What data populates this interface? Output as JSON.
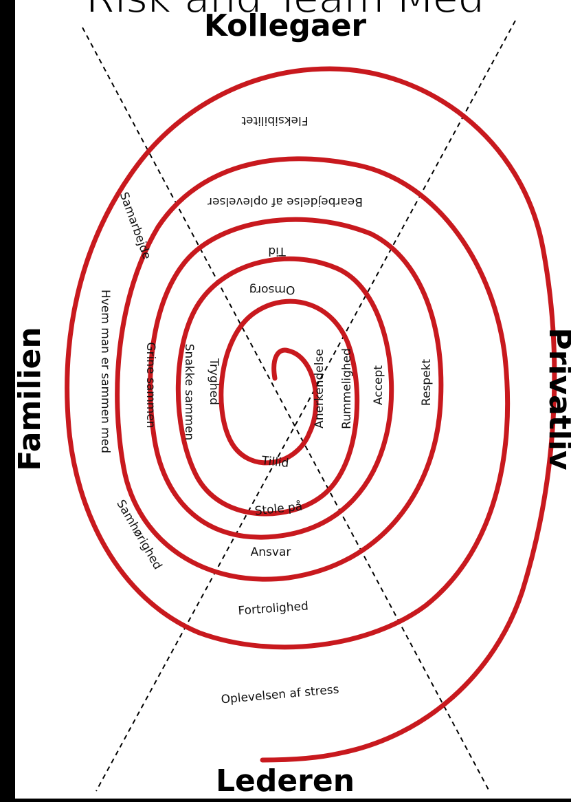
{
  "banner": {
    "text": "Risk and Team Med"
  },
  "corners": {
    "top": "Kollegaer",
    "bottom": "Lederen",
    "left": "Familien",
    "right": "Privatliv"
  },
  "labels": {
    "fleksibilitet": "Fleksibilitet",
    "bearbejdelse": "Bearbejdelse af oplevelser",
    "tid": "Tid",
    "omsorg": "Omsorg",
    "samarbejde": "Samarbejde",
    "hvem_man": "Hvem man er sammen med",
    "grine_sammen": "Grine sammen",
    "snakke_sammen": "Snakke sammen",
    "tryghed": "Tryghed",
    "samhorighed": "Samhørighed",
    "anerkendelse": "Anerkendelse",
    "rummelighed": "Rummelighed",
    "accept": "Accept",
    "respekt": "Respekt",
    "tillid": "Tillid",
    "stole_pa": "Stole på",
    "ansvar": "Ansvar",
    "fortrolighed": "Fortrolighed",
    "oplevelsen_stress": "Oplevelsen af stress"
  },
  "colors": {
    "spiral": "#c8191e",
    "background": "#ffffff",
    "frame": "#000000"
  }
}
